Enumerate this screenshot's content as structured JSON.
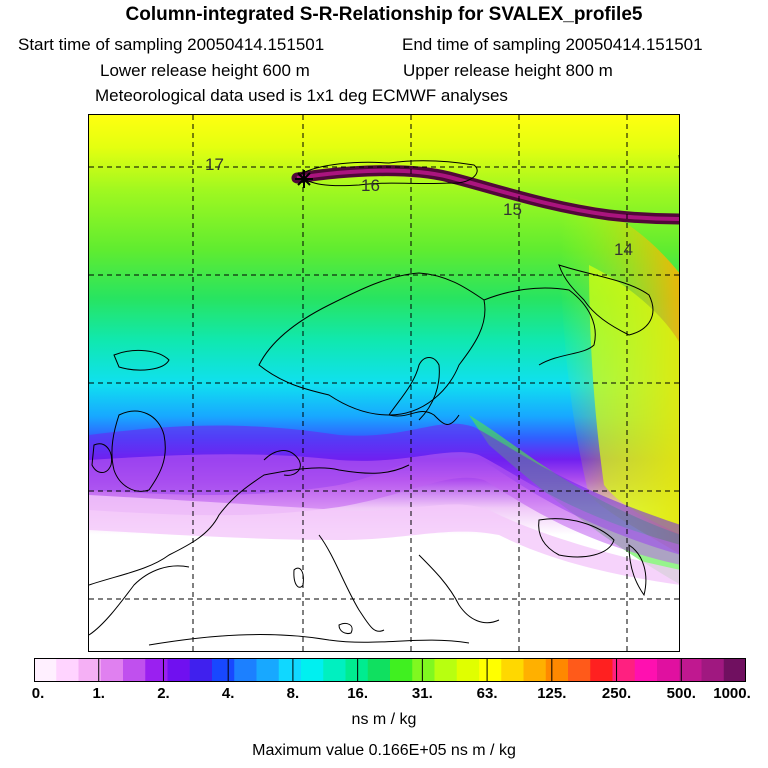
{
  "header": {
    "title": "Column-integrated S-R-Relationship for SVALEX_profile5",
    "start": "Start time of sampling 20050414.151501",
    "end": "End time of sampling 20050414.151501",
    "lower": "Lower release height  600 m",
    "upper": "Upper release height  800 m",
    "met": "Meteorological data used is 1x1 deg ECMWF analyses"
  },
  "map": {
    "track_labels": [
      "17",
      "16",
      "15",
      "14"
    ],
    "source_marker": "star-icon"
  },
  "colorbar": {
    "tick_labels": [
      "0.",
      "1.",
      "2.",
      "4.",
      "8.",
      "16.",
      "31.",
      "63.",
      "125.",
      "250.",
      "500.",
      "1000."
    ],
    "colors": [
      "#fff0ff",
      "#ffd4ff",
      "#f5b0f5",
      "#e080f0",
      "#c050ee",
      "#9a20f0",
      "#7010f0",
      "#4020ee",
      "#1848ff",
      "#1c80ff",
      "#18a8ff",
      "#10d8ff",
      "#00f0f0",
      "#00f0c0",
      "#00ec90",
      "#10e060",
      "#40f020",
      "#80f820",
      "#b8ff10",
      "#e0ff00",
      "#ffff00",
      "#ffd800",
      "#ffb000",
      "#ff8800",
      "#ff5a1a",
      "#ff2020",
      "#ff2080",
      "#ff10b0",
      "#e010a0",
      "#c01890",
      "#a01880",
      "#701060"
    ],
    "units": "ns m / kg",
    "max_value": "Maximum value  0.166E+05 ns m / kg"
  }
}
